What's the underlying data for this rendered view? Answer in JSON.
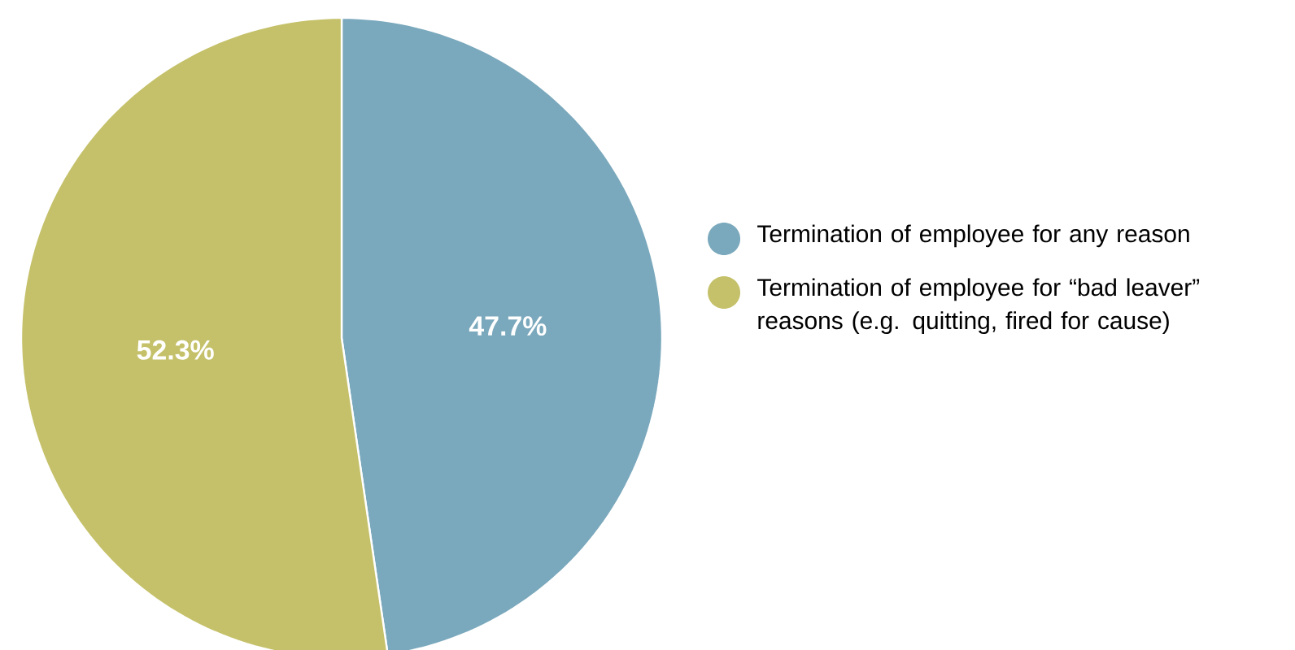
{
  "chart_data": {
    "type": "pie",
    "categories": [
      "Termination of employee for any reason",
      "Termination of employee for “bad leaver” reasons (e.g. quitting, fired for cause)"
    ],
    "values": [
      47.7,
      52.3
    ],
    "colors": [
      "#7aa8bc",
      "#c5c16a"
    ],
    "value_labels": [
      "47.7%",
      "52.3%"
    ],
    "legend": "right"
  }
}
